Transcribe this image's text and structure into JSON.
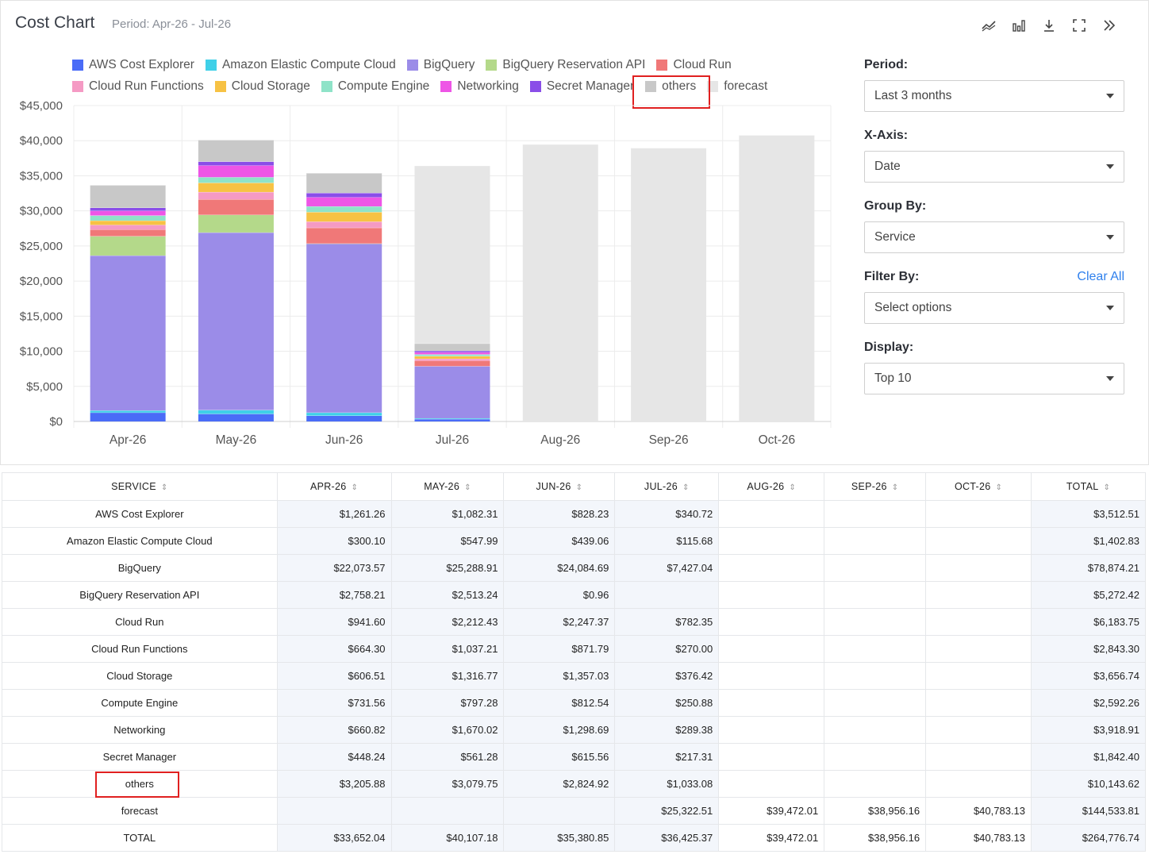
{
  "header": {
    "title": "Cost Chart",
    "period": "Period: Apr-26 - Jul-26"
  },
  "toolbar": {
    "icons": [
      "trend-line-icon",
      "bar-chart-icon",
      "download-icon",
      "fullscreen-icon",
      "double-chevron-right-icon"
    ]
  },
  "legend": [
    {
      "name": "AWS Cost Explorer",
      "color": "#4a6cf7"
    },
    {
      "name": "Amazon Elastic Compute Cloud",
      "color": "#3fd0e8"
    },
    {
      "name": "BigQuery",
      "color": "#9b8ce8"
    },
    {
      "name": "BigQuery Reservation API",
      "color": "#b4d98a"
    },
    {
      "name": "Cloud Run",
      "color": "#f07878"
    },
    {
      "name": "Cloud Run Functions",
      "color": "#f59ac4"
    },
    {
      "name": "Cloud Storage",
      "color": "#f7c244"
    },
    {
      "name": "Compute Engine",
      "color": "#8fe3c8"
    },
    {
      "name": "Networking",
      "color": "#ee55e6"
    },
    {
      "name": "Secret Manager",
      "color": "#8a4ee8"
    },
    {
      "name": "others",
      "color": "#c8c8c8"
    },
    {
      "name": "forecast",
      "color": "#e6e6e6"
    }
  ],
  "chart_data": {
    "type": "bar",
    "stacked": true,
    "categories": [
      "Apr-26",
      "May-26",
      "Jun-26",
      "Jul-26",
      "Aug-26",
      "Sep-26",
      "Oct-26"
    ],
    "ylim": [
      0,
      45000
    ],
    "yticks": [
      "$0",
      "$5,000",
      "$10,000",
      "$15,000",
      "$20,000",
      "$25,000",
      "$30,000",
      "$35,000",
      "$40,000",
      "$45,000"
    ],
    "grid": true,
    "series": [
      {
        "name": "AWS Cost Explorer",
        "values": [
          1261.26,
          1082.31,
          828.23,
          340.72,
          0,
          0,
          0
        ]
      },
      {
        "name": "Amazon Elastic Compute Cloud",
        "values": [
          300.1,
          547.99,
          439.06,
          115.68,
          0,
          0,
          0
        ]
      },
      {
        "name": "BigQuery",
        "values": [
          22073.57,
          25288.91,
          24084.69,
          7427.04,
          0,
          0,
          0
        ]
      },
      {
        "name": "BigQuery Reservation API",
        "values": [
          2758.21,
          2513.24,
          0.96,
          0,
          0,
          0,
          0
        ]
      },
      {
        "name": "Cloud Run",
        "values": [
          941.6,
          2212.43,
          2247.37,
          782.35,
          0,
          0,
          0
        ]
      },
      {
        "name": "Cloud Run Functions",
        "values": [
          664.3,
          1037.21,
          871.79,
          270.0,
          0,
          0,
          0
        ]
      },
      {
        "name": "Cloud Storage",
        "values": [
          606.51,
          1316.77,
          1357.03,
          376.42,
          0,
          0,
          0
        ]
      },
      {
        "name": "Compute Engine",
        "values": [
          731.56,
          797.28,
          812.54,
          250.88,
          0,
          0,
          0
        ]
      },
      {
        "name": "Networking",
        "values": [
          660.82,
          1670.02,
          1298.69,
          289.38,
          0,
          0,
          0
        ]
      },
      {
        "name": "Secret Manager",
        "values": [
          448.24,
          561.28,
          615.56,
          217.31,
          0,
          0,
          0
        ]
      },
      {
        "name": "others",
        "values": [
          3205.88,
          3079.75,
          2824.92,
          1033.08,
          0,
          0,
          0
        ]
      },
      {
        "name": "forecast",
        "values": [
          0,
          0,
          0,
          25322.51,
          39472.01,
          38956.16,
          40783.13
        ]
      }
    ]
  },
  "side": {
    "period_label": "Period:",
    "period_value": "Last 3 months",
    "xaxis_label": "X-Axis:",
    "xaxis_value": "Date",
    "groupby_label": "Group By:",
    "groupby_value": "Service",
    "filter_label": "Filter By:",
    "filter_clear": "Clear All",
    "filter_value": "Select options",
    "display_label": "Display:",
    "display_value": "Top 10"
  },
  "table": {
    "headers": [
      "SERVICE",
      "APR-26",
      "MAY-26",
      "JUN-26",
      "JUL-26",
      "AUG-26",
      "SEP-26",
      "OCT-26",
      "TOTAL"
    ],
    "rows": [
      [
        "AWS Cost Explorer",
        "$1,261.26",
        "$1,082.31",
        "$828.23",
        "$340.72",
        "",
        "",
        "",
        "$3,512.51"
      ],
      [
        "Amazon Elastic Compute Cloud",
        "$300.10",
        "$547.99",
        "$439.06",
        "$115.68",
        "",
        "",
        "",
        "$1,402.83"
      ],
      [
        "BigQuery",
        "$22,073.57",
        "$25,288.91",
        "$24,084.69",
        "$7,427.04",
        "",
        "",
        "",
        "$78,874.21"
      ],
      [
        "BigQuery Reservation API",
        "$2,758.21",
        "$2,513.24",
        "$0.96",
        "",
        "",
        "",
        "",
        "$5,272.42"
      ],
      [
        "Cloud Run",
        "$941.60",
        "$2,212.43",
        "$2,247.37",
        "$782.35",
        "",
        "",
        "",
        "$6,183.75"
      ],
      [
        "Cloud Run Functions",
        "$664.30",
        "$1,037.21",
        "$871.79",
        "$270.00",
        "",
        "",
        "",
        "$2,843.30"
      ],
      [
        "Cloud Storage",
        "$606.51",
        "$1,316.77",
        "$1,357.03",
        "$376.42",
        "",
        "",
        "",
        "$3,656.74"
      ],
      [
        "Compute Engine",
        "$731.56",
        "$797.28",
        "$812.54",
        "$250.88",
        "",
        "",
        "",
        "$2,592.26"
      ],
      [
        "Networking",
        "$660.82",
        "$1,670.02",
        "$1,298.69",
        "$289.38",
        "",
        "",
        "",
        "$3,918.91"
      ],
      [
        "Secret Manager",
        "$448.24",
        "$561.28",
        "$615.56",
        "$217.31",
        "",
        "",
        "",
        "$1,842.40"
      ],
      [
        "others",
        "$3,205.88",
        "$3,079.75",
        "$2,824.92",
        "$1,033.08",
        "",
        "",
        "",
        "$10,143.62"
      ],
      [
        "forecast",
        "",
        "",
        "",
        "$25,322.51",
        "$39,472.01",
        "$38,956.16",
        "$40,783.13",
        "$144,533.81"
      ],
      [
        "TOTAL",
        "$33,652.04",
        "$40,107.18",
        "$35,380.85",
        "$36,425.37",
        "$39,472.01",
        "$38,956.16",
        "$40,783.13",
        "$264,776.74"
      ]
    ]
  }
}
